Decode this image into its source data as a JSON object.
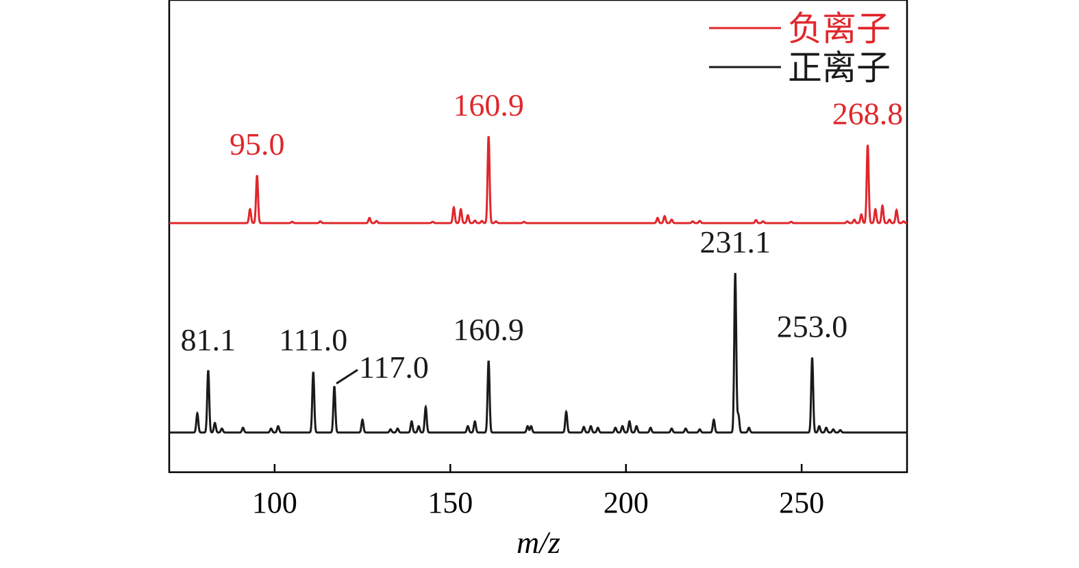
{
  "chart_data": {
    "type": "line",
    "title": "",
    "xlabel": "m/z",
    "ylabel": "",
    "xlim": [
      70,
      280
    ],
    "x_ticks": [
      100,
      150,
      200,
      250
    ],
    "grid": false,
    "legend": {
      "placement": "top-right",
      "entries": [
        {
          "label": "负离子",
          "color": "#e0262b"
        },
        {
          "label": "正离子",
          "color": "#1a1a1a"
        }
      ]
    },
    "series": [
      {
        "name": "负离子",
        "color": "#e0262b",
        "peaks": [
          {
            "x": 93.0,
            "y": 16
          },
          {
            "x": 95.0,
            "y": 55
          },
          {
            "x": 105.0,
            "y": 1.5
          },
          {
            "x": 113.0,
            "y": 2
          },
          {
            "x": 127.0,
            "y": 6
          },
          {
            "x": 129.0,
            "y": 2.5
          },
          {
            "x": 145.0,
            "y": 1.5
          },
          {
            "x": 151.0,
            "y": 18
          },
          {
            "x": 153.0,
            "y": 16
          },
          {
            "x": 155.0,
            "y": 9
          },
          {
            "x": 157.0,
            "y": 3
          },
          {
            "x": 159.0,
            "y": 2.5
          },
          {
            "x": 160.9,
            "y": 100
          },
          {
            "x": 163.0,
            "y": 2
          },
          {
            "x": 171.0,
            "y": 1.5
          },
          {
            "x": 209.0,
            "y": 6
          },
          {
            "x": 211.0,
            "y": 8
          },
          {
            "x": 213.0,
            "y": 4
          },
          {
            "x": 219.0,
            "y": 2
          },
          {
            "x": 221.0,
            "y": 2.5
          },
          {
            "x": 237.0,
            "y": 3.5
          },
          {
            "x": 239.0,
            "y": 2
          },
          {
            "x": 247.0,
            "y": 1.5
          },
          {
            "x": 263.0,
            "y": 2
          },
          {
            "x": 265.0,
            "y": 4
          },
          {
            "x": 267.0,
            "y": 10
          },
          {
            "x": 268.8,
            "y": 90
          },
          {
            "x": 271.0,
            "y": 16
          },
          {
            "x": 273.0,
            "y": 20
          },
          {
            "x": 275.0,
            "y": 4
          },
          {
            "x": 277.0,
            "y": 15
          },
          {
            "x": 279.0,
            "y": 2
          }
        ],
        "labels": [
          {
            "x": 95.0,
            "text": "95.0"
          },
          {
            "x": 160.9,
            "text": "160.9"
          },
          {
            "x": 268.8,
            "text": "268.8"
          }
        ]
      },
      {
        "name": "正离子",
        "color": "#1a1a1a",
        "peaks": [
          {
            "x": 78.0,
            "y": 12
          },
          {
            "x": 81.1,
            "y": 39
          },
          {
            "x": 83.0,
            "y": 6
          },
          {
            "x": 85.0,
            "y": 2.5
          },
          {
            "x": 91.0,
            "y": 3
          },
          {
            "x": 99.0,
            "y": 2.5
          },
          {
            "x": 101.0,
            "y": 4
          },
          {
            "x": 111.0,
            "y": 38
          },
          {
            "x": 117.0,
            "y": 29
          },
          {
            "x": 125.0,
            "y": 8
          },
          {
            "x": 133.0,
            "y": 2
          },
          {
            "x": 135.0,
            "y": 2.5
          },
          {
            "x": 139.0,
            "y": 7
          },
          {
            "x": 141.0,
            "y": 4
          },
          {
            "x": 143.0,
            "y": 16
          },
          {
            "x": 155.0,
            "y": 4
          },
          {
            "x": 157.0,
            "y": 7
          },
          {
            "x": 160.9,
            "y": 45
          },
          {
            "x": 172.0,
            "y": 4
          },
          {
            "x": 173.0,
            "y": 4
          },
          {
            "x": 183.0,
            "y": 13
          },
          {
            "x": 188.0,
            "y": 3.5
          },
          {
            "x": 190.0,
            "y": 4
          },
          {
            "x": 192.0,
            "y": 3
          },
          {
            "x": 197.0,
            "y": 3
          },
          {
            "x": 199.0,
            "y": 4
          },
          {
            "x": 201.0,
            "y": 7
          },
          {
            "x": 203.0,
            "y": 4
          },
          {
            "x": 207.0,
            "y": 3
          },
          {
            "x": 213.0,
            "y": 2.5
          },
          {
            "x": 217.0,
            "y": 2.5
          },
          {
            "x": 221.0,
            "y": 2
          },
          {
            "x": 225.0,
            "y": 8
          },
          {
            "x": 231.1,
            "y": 100
          },
          {
            "x": 232.0,
            "y": 11
          },
          {
            "x": 235.0,
            "y": 3
          },
          {
            "x": 253.0,
            "y": 47
          },
          {
            "x": 255.0,
            "y": 4
          },
          {
            "x": 257.0,
            "y": 3
          },
          {
            "x": 259.0,
            "y": 2
          },
          {
            "x": 261.0,
            "y": 1.5
          }
        ],
        "labels": [
          {
            "x": 81.1,
            "text": "81.1"
          },
          {
            "x": 111.0,
            "text": "111.0"
          },
          {
            "x": 117.0,
            "text": "117.0"
          },
          {
            "x": 160.9,
            "text": "160.9"
          },
          {
            "x": 231.1,
            "text": "231.1"
          },
          {
            "x": 253.0,
            "text": "253.0"
          }
        ]
      }
    ]
  }
}
